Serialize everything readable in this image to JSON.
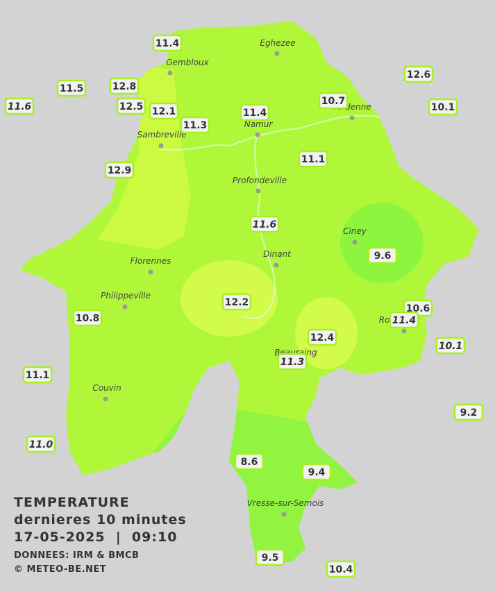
{
  "title": {
    "line1": "TEMPERATURE",
    "line2": "dernieres 10 minutes",
    "line3": "17-05-2025  |  09:10",
    "line4": "DONNEES: IRM & BMCB",
    "line5": "© METEO-BE.NET"
  },
  "cities": [
    "Eghezee",
    "Gembloux",
    "Andenne",
    "Namur",
    "Sambreville",
    "Profondeville",
    "Ciney",
    "Dinant",
    "Florennes",
    "Philippeville",
    "Couvin",
    "Vresse-sur-Semois",
    "Rochefort",
    "Beauraing"
  ],
  "stations": [
    "11.4",
    "12.6",
    "11.5",
    "12.8",
    "11.6",
    "12.5",
    "12.1",
    "11.4",
    "10.7",
    "10.1",
    "11.3",
    "11.1",
    "12.9",
    "11.6",
    "9.6",
    "12.2",
    "10.6",
    "11.4",
    "10.8",
    "12.4",
    "10.1",
    "11.3",
    "11.1",
    "9.2",
    "11.0",
    "8.6",
    "9.4",
    "9.5",
    "10.4"
  ]
}
